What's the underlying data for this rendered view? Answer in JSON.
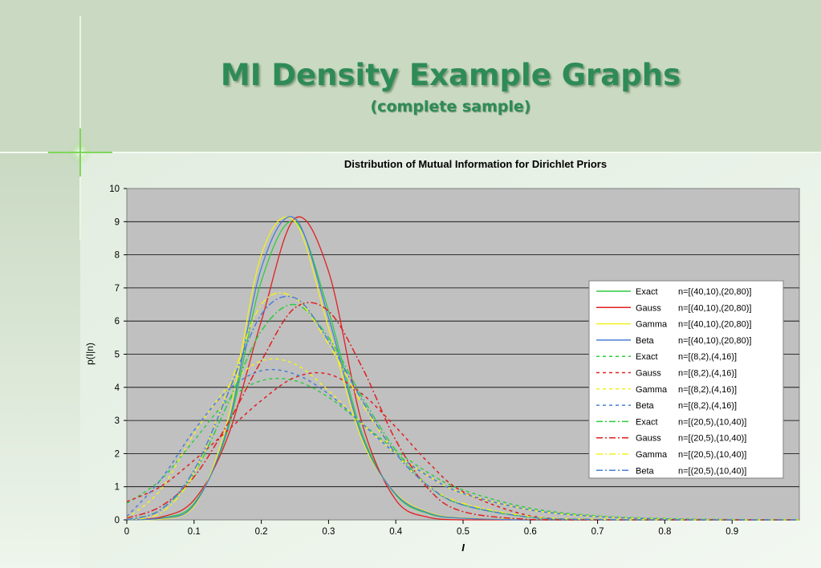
{
  "slide": {
    "title": "MI Density Example Graphs",
    "subtitle": "(complete sample)"
  },
  "colors": {
    "background": "#c9d9c2",
    "title": "#2e8b57",
    "plot_area": "#c0c0c0",
    "exact": "#2ecc40",
    "gauss": "#e02020",
    "gamma": "#f0f020",
    "beta": "#4a7fd4"
  },
  "chart_data": {
    "type": "line",
    "title": "Distribution of Mutual Information for Dirichlet Priors",
    "xlabel": "I",
    "ylabel": "p(I|n)",
    "xlim": [
      0,
      1
    ],
    "ylim": [
      0,
      10
    ],
    "xticks": [
      "0",
      "0.1",
      "0.2",
      "0.3",
      "0.4",
      "0.5",
      "0.6",
      "0.7",
      "0.8",
      "0.9"
    ],
    "yticks": [
      "0",
      "1",
      "2",
      "3",
      "4",
      "5",
      "6",
      "7",
      "8",
      "9",
      "10"
    ],
    "grid": "horizontal",
    "legend_position": "right",
    "series": [
      {
        "name": "Exact",
        "params": "n=[(40,10),(20,80)]",
        "color": "#2ecc40",
        "style": "solid",
        "x": [
          0,
          0.05,
          0.1,
          0.15,
          0.2,
          0.25,
          0.3,
          0.35,
          0.4,
          0.45,
          0.5,
          0.6,
          0.7,
          0.8,
          1.0
        ],
        "y": [
          0,
          0.05,
          0.5,
          2.7,
          7.2,
          9.0,
          6.3,
          2.6,
          0.75,
          0.18,
          0.05,
          0,
          0,
          0,
          0
        ]
      },
      {
        "name": "Gauss",
        "params": "n=[(40,10),(20,80)]",
        "color": "#e02020",
        "style": "solid",
        "x": [
          0,
          0.05,
          0.1,
          0.15,
          0.2,
          0.25,
          0.3,
          0.35,
          0.4,
          0.45,
          0.5,
          0.6,
          0.7,
          0.8,
          1.0
        ],
        "y": [
          0,
          0.08,
          0.6,
          2.5,
          6.0,
          9.1,
          7.5,
          2.9,
          0.6,
          0.07,
          0,
          0,
          0,
          0,
          0
        ]
      },
      {
        "name": "Gamma",
        "params": "n=[(40,10),(20,80)]",
        "color": "#f0f020",
        "style": "solid",
        "x": [
          0,
          0.05,
          0.1,
          0.15,
          0.2,
          0.25,
          0.3,
          0.35,
          0.4,
          0.45,
          0.5,
          0.6,
          0.7,
          0.8,
          1.0
        ],
        "y": [
          0,
          0.02,
          0.4,
          3.0,
          8.0,
          9.0,
          5.8,
          2.4,
          0.8,
          0.22,
          0.06,
          0.01,
          0,
          0,
          0
        ]
      },
      {
        "name": "Beta",
        "params": "n=[(40,10),(20,80)]",
        "color": "#4a7fd4",
        "style": "solid",
        "x": [
          0,
          0.05,
          0.1,
          0.15,
          0.2,
          0.25,
          0.3,
          0.35,
          0.4,
          0.45,
          0.5,
          0.6,
          0.7,
          0.8,
          1.0
        ],
        "y": [
          0,
          0.04,
          0.45,
          2.8,
          7.6,
          9.1,
          6.1,
          2.5,
          0.78,
          0.2,
          0.05,
          0,
          0,
          0,
          0
        ]
      },
      {
        "name": "Exact",
        "params": "n=[(8,2),(4,16)]",
        "color": "#2ecc40",
        "style": "dashed",
        "x": [
          0,
          0.05,
          0.1,
          0.15,
          0.2,
          0.25,
          0.3,
          0.35,
          0.4,
          0.45,
          0.5,
          0.6,
          0.7,
          0.8,
          0.9,
          1.0
        ],
        "y": [
          0.5,
          1.2,
          2.4,
          3.6,
          4.2,
          4.2,
          3.7,
          2.9,
          2.1,
          1.4,
          0.9,
          0.35,
          0.12,
          0.04,
          0.01,
          0
        ]
      },
      {
        "name": "Gauss",
        "params": "n=[(8,2),(4,16)]",
        "color": "#e02020",
        "style": "dashed",
        "x": [
          0,
          0.05,
          0.1,
          0.15,
          0.2,
          0.25,
          0.3,
          0.35,
          0.4,
          0.45,
          0.5,
          0.6,
          0.7,
          0.8,
          0.9,
          1.0
        ],
        "y": [
          0.55,
          1.0,
          1.8,
          2.7,
          3.6,
          4.3,
          4.4,
          3.8,
          2.8,
          1.7,
          0.85,
          0.12,
          0.01,
          0,
          0,
          0
        ]
      },
      {
        "name": "Gamma",
        "params": "n=[(8,2),(4,16)]",
        "color": "#f0f020",
        "style": "dashed",
        "x": [
          0,
          0.05,
          0.1,
          0.15,
          0.2,
          0.25,
          0.3,
          0.35,
          0.4,
          0.45,
          0.5,
          0.6,
          0.7,
          0.8,
          0.9,
          1.0
        ],
        "y": [
          0.05,
          0.9,
          2.6,
          4.0,
          4.8,
          4.7,
          3.9,
          2.9,
          2.0,
          1.3,
          0.8,
          0.3,
          0.1,
          0.03,
          0.01,
          0
        ]
      },
      {
        "name": "Beta",
        "params": "n=[(8,2),(4,16)]",
        "color": "#4a7fd4",
        "style": "dashed",
        "x": [
          0,
          0.05,
          0.1,
          0.15,
          0.2,
          0.25,
          0.3,
          0.35,
          0.4,
          0.45,
          0.5,
          0.6,
          0.7,
          0.8,
          0.9,
          1.0
        ],
        "y": [
          0.1,
          1.2,
          2.7,
          3.9,
          4.5,
          4.4,
          3.8,
          2.9,
          2.0,
          1.3,
          0.8,
          0.3,
          0.1,
          0.03,
          0.01,
          0
        ]
      },
      {
        "name": "Exact",
        "params": "n=[(20,5),(10,40)]",
        "color": "#2ecc40",
        "style": "dashdot",
        "x": [
          0,
          0.05,
          0.1,
          0.15,
          0.2,
          0.25,
          0.3,
          0.35,
          0.4,
          0.45,
          0.5,
          0.6,
          0.7,
          0.8,
          0.9,
          1.0
        ],
        "y": [
          0,
          0.3,
          1.4,
          3.5,
          5.7,
          6.5,
          5.5,
          3.7,
          2.1,
          1.0,
          0.45,
          0.08,
          0.01,
          0,
          0,
          0
        ]
      },
      {
        "name": "Gauss",
        "params": "n=[(20,5),(10,40)]",
        "color": "#e02020",
        "style": "dashdot",
        "x": [
          0,
          0.05,
          0.1,
          0.15,
          0.2,
          0.25,
          0.3,
          0.35,
          0.4,
          0.45,
          0.5,
          0.6,
          0.7,
          0.8,
          0.9,
          1.0
        ],
        "y": [
          0.05,
          0.4,
          1.3,
          2.9,
          4.8,
          6.4,
          6.3,
          4.6,
          2.4,
          0.9,
          0.25,
          0.01,
          0,
          0,
          0,
          0
        ]
      },
      {
        "name": "Gamma",
        "params": "n=[(20,5),(10,40)]",
        "color": "#f0f020",
        "style": "dashdot",
        "x": [
          0,
          0.05,
          0.1,
          0.15,
          0.2,
          0.25,
          0.3,
          0.35,
          0.4,
          0.45,
          0.5,
          0.6,
          0.7,
          0.8,
          0.9,
          1.0
        ],
        "y": [
          0,
          0.2,
          1.4,
          3.9,
          6.5,
          6.7,
          5.3,
          3.5,
          2.0,
          1.0,
          0.5,
          0.1,
          0.02,
          0,
          0,
          0
        ]
      },
      {
        "name": "Beta",
        "params": "n=[(20,5),(10,40)]",
        "color": "#4a7fd4",
        "style": "dashdot",
        "x": [
          0,
          0.05,
          0.1,
          0.15,
          0.2,
          0.25,
          0.3,
          0.35,
          0.4,
          0.45,
          0.5,
          0.6,
          0.7,
          0.8,
          0.9,
          1.0
        ],
        "y": [
          0,
          0.3,
          1.5,
          3.8,
          6.2,
          6.7,
          5.4,
          3.6,
          2.0,
          1.0,
          0.45,
          0.08,
          0.01,
          0,
          0,
          0
        ]
      }
    ]
  }
}
